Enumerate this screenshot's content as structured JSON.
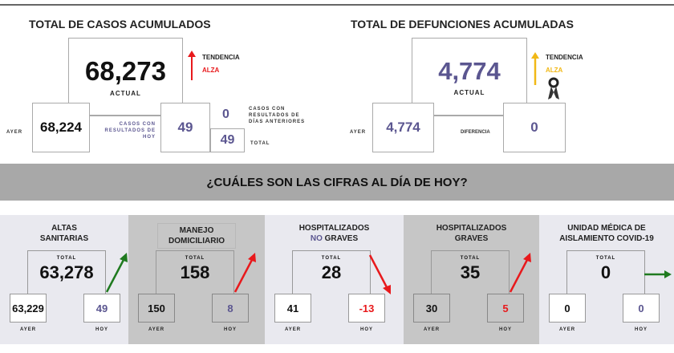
{
  "casos": {
    "title": "TOTAL DE CASOS ACUMULADOS",
    "actual_value": "68,273",
    "actual_label": "ACTUAL",
    "tendencia_label": "TENDENCIA",
    "tendencia_value": "ALZA",
    "ayer_label": "AYER",
    "ayer_value": "68,224",
    "hoy_label": "CASOS CON RESULTADOS DE HOY",
    "hoy_value": "49",
    "anteriores_label": "CASOS CON RESULTADOS DE DÍAS ANTERIORES",
    "anteriores_value": "0",
    "total_label": "TOTAL",
    "total_value": "49"
  },
  "defunciones": {
    "title": "TOTAL DE DEFUNCIONES ACUMULADAS",
    "actual_value": "4,774",
    "actual_label": "ACTUAL",
    "tendencia_label": "TENDENCIA",
    "tendencia_value": "ALZA",
    "ayer_label": "AYER",
    "ayer_value": "4,774",
    "diferencia_label": "DIFERENCIA",
    "diferencia_value": "0"
  },
  "banner": "¿CUÁLES SON LAS CIFRAS AL DÍA DE HOY?",
  "colors": {
    "red": "#e8191c",
    "green": "#1f7a1f",
    "yellow": "#f1b816",
    "purple": "#5b5690"
  },
  "panels": [
    {
      "title1": "ALTAS",
      "title2": "SANITARIAS",
      "title2_prefix": "",
      "total_label": "TOTAL",
      "total": "63,278",
      "ayer": "63,229",
      "hoy": "49",
      "ayer_label": "AYER",
      "hoy_label": "HOY",
      "trend": "up",
      "trend_color": "green",
      "hoy_color": "purple"
    },
    {
      "title1": "MANEJO",
      "title2": "DOMICILIARIO",
      "title2_prefix": "",
      "total_label": "TOTAL",
      "total": "158",
      "ayer": "150",
      "hoy": "8",
      "ayer_label": "AYER",
      "hoy_label": "HOY",
      "trend": "up",
      "trend_color": "red",
      "hoy_color": "purple"
    },
    {
      "title1": "HOSPITALIZADOS",
      "title2": "GRAVES",
      "title2_prefix": "NO",
      "total_label": "TOTAL",
      "total": "28",
      "ayer": "41",
      "hoy": "-13",
      "ayer_label": "AYER",
      "hoy_label": "HOY",
      "trend": "down",
      "trend_color": "red",
      "hoy_color": "red"
    },
    {
      "title1": "HOSPITALIZADOS",
      "title2": "GRAVES",
      "title2_prefix": "",
      "total_label": "TOTAL",
      "total": "35",
      "ayer": "30",
      "hoy": "5",
      "ayer_label": "AYER",
      "hoy_label": "HOY",
      "trend": "up",
      "trend_color": "red",
      "hoy_color": "red"
    },
    {
      "title1": "UNIDAD MÉDICA DE",
      "title2": "AISLAMIENTO COVID-19",
      "title2_prefix": "",
      "total_label": "TOTAL",
      "total": "0",
      "ayer": "0",
      "hoy": "0",
      "ayer_label": "AYER",
      "hoy_label": "HOY",
      "trend": "right",
      "trend_color": "green",
      "hoy_color": "purple"
    }
  ]
}
